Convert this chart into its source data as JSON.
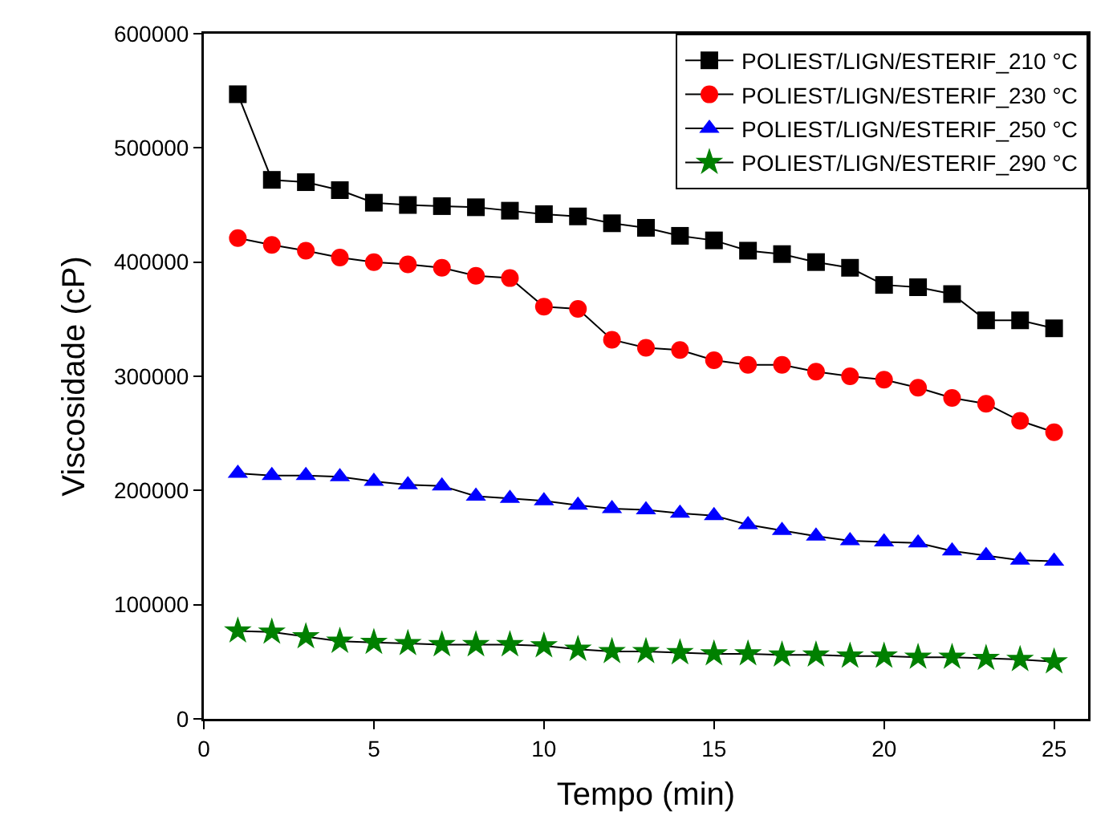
{
  "chart_data": {
    "type": "line",
    "xlabel": "Tempo (min)",
    "ylabel": "Viscosidade (cP)",
    "x": [
      1,
      2,
      3,
      4,
      5,
      6,
      7,
      8,
      9,
      10,
      11,
      12,
      13,
      14,
      15,
      16,
      17,
      18,
      19,
      20,
      21,
      22,
      23,
      24,
      25
    ],
    "xlim": [
      0,
      26
    ],
    "xticks": [
      0,
      5,
      10,
      15,
      20,
      25
    ],
    "ylim": [
      0,
      600000
    ],
    "yticks": [
      0,
      100000,
      200000,
      300000,
      400000,
      500000,
      600000
    ],
    "grid": false,
    "legend": "top right",
    "line_style": "solid",
    "series": [
      {
        "name": "POLIEST/LIGN/ESTERIF_210 °C",
        "color": "#000000",
        "marker": "square",
        "values": [
          547000,
          472000,
          470000,
          463000,
          452000,
          450000,
          449000,
          448000,
          445000,
          442000,
          440000,
          434000,
          430000,
          423000,
          419000,
          410000,
          407000,
          400000,
          395000,
          380000,
          378000,
          372000,
          349000,
          349000,
          342000
        ]
      },
      {
        "name": "POLIEST/LIGN/ESTERIF_230 °C",
        "color": "#ff0000",
        "marker": "circle",
        "values": [
          421000,
          415000,
          410000,
          404000,
          400000,
          398000,
          395000,
          388000,
          386000,
          361000,
          359000,
          332000,
          325000,
          323000,
          314000,
          310000,
          310000,
          304000,
          300000,
          297000,
          290000,
          281000,
          276000,
          261000,
          251000
        ]
      },
      {
        "name": "POLIEST/LIGN/ESTERIF_250 °C",
        "color": "#0000ff",
        "marker": "triangle",
        "values": [
          215000,
          213000,
          213000,
          212000,
          208000,
          205000,
          204000,
          195000,
          193000,
          191000,
          187000,
          184000,
          183000,
          180000,
          178000,
          170000,
          165000,
          160000,
          156000,
          155000,
          154000,
          147000,
          143000,
          139000,
          138000
        ]
      },
      {
        "name": "POLIEST/LIGN/ESTERIF_290 °C",
        "color": "#008000",
        "marker": "star",
        "values": [
          77000,
          76000,
          72000,
          68000,
          67000,
          66000,
          65000,
          65000,
          65000,
          64000,
          61000,
          59000,
          59000,
          58000,
          57000,
          57000,
          56000,
          56000,
          55000,
          55000,
          54000,
          54000,
          53000,
          52000,
          50000
        ]
      }
    ]
  }
}
